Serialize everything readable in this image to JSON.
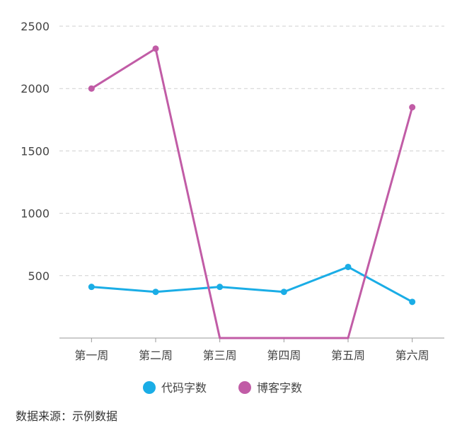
{
  "chart_data": {
    "type": "line",
    "categories": [
      "第一周",
      "第二周",
      "第三周",
      "第四周",
      "第五周",
      "第六周"
    ],
    "series": [
      {
        "name": "代码字数",
        "color": "#1aade6",
        "values": [
          410,
          370,
          410,
          370,
          570,
          290
        ]
      },
      {
        "name": "博客字数",
        "color": "#c15ca6",
        "values": [
          2000,
          2320,
          0,
          0,
          0,
          1850
        ]
      }
    ],
    "ylim": [
      0,
      2500
    ],
    "yticks": [
      500,
      1000,
      1500,
      2000,
      2500
    ],
    "grid": true,
    "legend_position": "bottom",
    "title": "",
    "xlabel": "",
    "ylabel": ""
  },
  "footer": {
    "source_note": "数据来源：示例数据"
  }
}
